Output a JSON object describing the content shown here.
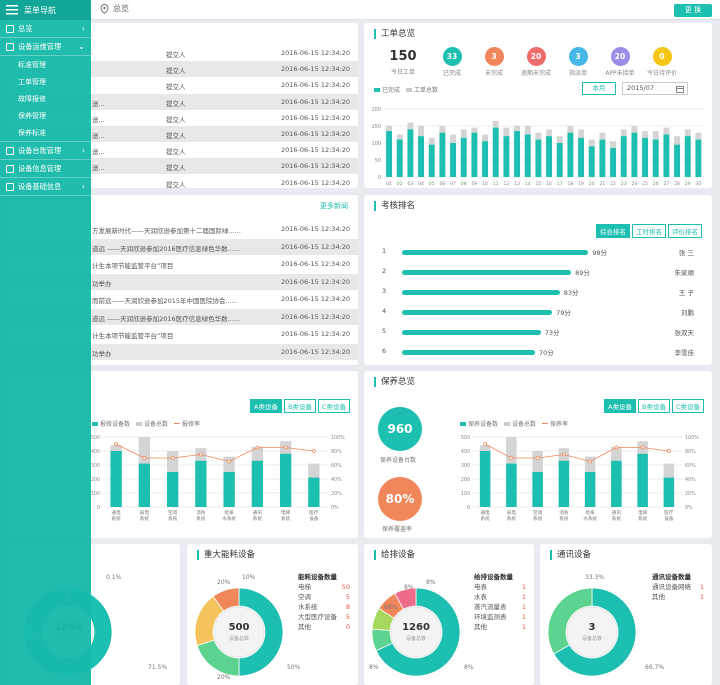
{
  "sidebar": {
    "title": "菜单导航",
    "items": [
      {
        "label": "总览",
        "arrow": "›"
      },
      {
        "label": "设备运维管理",
        "arrow": "⌄"
      },
      {
        "label": "设备台账管理",
        "arrow": "›"
      },
      {
        "label": "设备信息管理",
        "arrow": ""
      },
      {
        "label": "设备基础信息",
        "arrow": "›"
      }
    ],
    "subitems": [
      "标准管理",
      "工单管理",
      "故障报修",
      "保养管理",
      "保养标准"
    ]
  },
  "topbar": {
    "location": "总览",
    "button": "更 换"
  },
  "tasks": {
    "rows": [
      {
        "a": "",
        "b": "提交人",
        "c": "2016-06-15 12:34:20"
      },
      {
        "a": "",
        "b": "提交人",
        "c": "2016-06-15 12:34:20"
      },
      {
        "a": "",
        "b": "提交人",
        "c": "2016-06-15 12:34:20"
      },
      {
        "a": "送...",
        "b": "提交人",
        "c": "2016-06-15 12:34:20"
      },
      {
        "a": "送...",
        "b": "提交人",
        "c": "2016-06-15 12:34:20"
      },
      {
        "a": "送...",
        "b": "提交人",
        "c": "2016-06-15 12:34:20"
      },
      {
        "a": "送...",
        "b": "提交人",
        "c": "2016-06-15 12:34:20"
      },
      {
        "a": "送...",
        "b": "提交人",
        "c": "2016-06-15 12:34:20"
      },
      {
        "a": "",
        "b": "提交人",
        "c": "2016-06-15 12:34:20"
      }
    ]
  },
  "news": {
    "more": "更多新闻",
    "rows": [
      {
        "t": "方发展新时代——天润欣逊参加第十二届国际绿......",
        "d": "2016-06-15 12:34:20"
      },
      {
        "t": "道远 ——天润欣逊参加2016医疗信息绿色华数......",
        "d": "2016-06-15 12:34:20"
      },
      {
        "t": "计生本项节能监管平台”项目",
        "d": "2016-06-15 12:34:20"
      },
      {
        "t": "功举办",
        "d": "2016-06-15 12:34:20"
      },
      {
        "t": "而前远——天润欣逊参加2015年中国医院协会......",
        "d": "2016-06-15 12:34:20"
      },
      {
        "t": "道远 ——天润欣逊参加2016医疗信息绿色华数......",
        "d": "2016-06-15 12:34:20"
      },
      {
        "t": "计生本项节能监管平台”项目",
        "d": "2016-06-15 12:34:20"
      },
      {
        "t": "功举办",
        "d": "2016-06-15 12:34:20"
      }
    ]
  },
  "workorders": {
    "title": "工单总览",
    "total": {
      "value": "150",
      "label": "今日工单"
    },
    "stats": [
      {
        "value": "33",
        "label": "已完成",
        "color": "#1cbfb0"
      },
      {
        "value": "3",
        "label": "未完成",
        "color": "#f0875a"
      },
      {
        "value": "20",
        "label": "逾期未完成",
        "color": "#ee6b6b"
      },
      {
        "value": "3",
        "label": "指派单",
        "color": "#47b6e8"
      },
      {
        "value": "20",
        "label": "APP未接单",
        "color": "#9b8de8"
      },
      {
        "value": "0",
        "label": "今日待评价",
        "color": "#f5c518"
      }
    ],
    "legend": [
      "已完成",
      "工单总数"
    ],
    "month_btn": "本月",
    "month_value": "2015/07"
  },
  "ranking": {
    "title": "考核排名",
    "tabs": [
      "综合排名",
      "工时排名",
      "评价排名"
    ],
    "rows": [
      {
        "rank": "1",
        "score": "98分",
        "value": 98,
        "name": "张 三"
      },
      {
        "rank": "2",
        "score": "89分",
        "value": 89,
        "name": "朱家顺"
      },
      {
        "rank": "3",
        "score": "83分",
        "value": 83,
        "name": "王 子"
      },
      {
        "rank": "4",
        "score": "79分",
        "value": 79,
        "name": "刘鹏"
      },
      {
        "rank": "5",
        "score": "73分",
        "value": 73,
        "name": "张双天"
      },
      {
        "rank": "6",
        "score": "70分",
        "value": 70,
        "name": "李雪佳"
      }
    ]
  },
  "repair": {
    "tabs": [
      "A类设备",
      "B类设备",
      "C类设备"
    ],
    "legend": [
      "报修设备数",
      "设备总数",
      "报修率"
    ]
  },
  "maint": {
    "title": "保养总览",
    "tabs": [
      "A类设备",
      "B类设备",
      "C类设备"
    ],
    "legend": [
      "保养设备数",
      "设备总数",
      "保养率"
    ],
    "gauge1": {
      "value": "960",
      "label": "保养设备台数"
    },
    "gauge2": {
      "value": "80%",
      "label": "保养覆盖率"
    }
  },
  "donuts": [
    {
      "title": "",
      "center": "1263",
      "center_label": "设备总数",
      "pct_a": "0.1%",
      "pct_b": "71.5%"
    },
    {
      "title": "重大能耗设备",
      "center": "500",
      "center_label": "设备总数",
      "pcts": [
        "20%",
        "10%",
        "50%",
        "20%"
      ],
      "list_title": "能耗设备数量",
      "items": [
        {
          "n": "电梯",
          "v": "50"
        },
        {
          "n": "空调",
          "v": "5"
        },
        {
          "n": "水系统",
          "v": "8"
        },
        {
          "n": "大型医疗设备",
          "v": "5"
        },
        {
          "n": "其他",
          "v": "0"
        }
      ]
    },
    {
      "title": "给排设备",
      "center": "1260",
      "center_label": "设备总数",
      "pcts": [
        "8%",
        "8%",
        "8%",
        "8%",
        "68%"
      ],
      "list_title": "给排设备数量",
      "items": [
        {
          "n": "电表",
          "v": "1"
        },
        {
          "n": "水表",
          "v": "1"
        },
        {
          "n": "蒸汽流量表",
          "v": "1"
        },
        {
          "n": "环境监测表",
          "v": "1"
        },
        {
          "n": "其他",
          "v": "1"
        }
      ]
    },
    {
      "title": "通讯设备",
      "center": "3",
      "center_label": "设备总数",
      "pcts": [
        "33.3%",
        "66.7%"
      ],
      "list_title": "通讯设备数量",
      "items": [
        {
          "n": "通讯设备网络",
          "v": "1"
        },
        {
          "n": "其他",
          "v": "1"
        }
      ]
    }
  ],
  "chart_data": [
    {
      "type": "bar",
      "title": "工单总览",
      "series": [
        {
          "name": "已完成",
          "values": [
            135,
            110,
            140,
            120,
            95,
            130,
            100,
            115,
            130,
            105,
            145,
            120,
            135,
            125,
            110,
            120,
            100,
            130,
            115,
            90,
            110,
            85,
            120,
            130,
            115,
            110,
            125,
            95,
            120,
            110
          ]
        },
        {
          "name": "工单总数",
          "values": [
            150,
            125,
            160,
            150,
            115,
            150,
            125,
            140,
            145,
            125,
            165,
            145,
            150,
            150,
            130,
            140,
            120,
            150,
            140,
            110,
            130,
            105,
            140,
            150,
            135,
            135,
            145,
            120,
            140,
            130
          ]
        }
      ],
      "categories": [
        "01",
        "02",
        "03",
        "04",
        "05",
        "06",
        "07",
        "08",
        "09",
        "10",
        "11",
        "12",
        "13",
        "14",
        "15",
        "16",
        "17",
        "18",
        "19",
        "20",
        "21",
        "22",
        "23",
        "24",
        "25",
        "26",
        "27",
        "28",
        "29",
        "30"
      ],
      "ylim": [
        0,
        200
      ]
    },
    {
      "type": "bar",
      "title": "",
      "categories": [
        "通电系统",
        "弱电系统",
        "空调系统",
        "消防系统",
        "给排水系统",
        "通讯系统",
        "电梯系统",
        "医疗设备"
      ],
      "series": [
        {
          "name": "报修设备数",
          "values": [
            400,
            310,
            250,
            330,
            250,
            330,
            380,
            210
          ]
        },
        {
          "name": "设备总数",
          "values": [
            440,
            500,
            400,
            420,
            360,
            430,
            470,
            310
          ]
        },
        {
          "name": "报修率",
          "values": [
            90,
            70,
            70,
            75,
            65,
            85,
            85,
            80
          ]
        }
      ],
      "ylim": [
        0,
        500
      ],
      "y2lim": [
        0,
        100
      ]
    },
    {
      "type": "bar",
      "title": "保养总览",
      "categories": [
        "通电系统",
        "弱电系统",
        "空调系统",
        "消防系统",
        "给排水系统",
        "通讯系统",
        "电梯系统",
        "医疗设备"
      ],
      "series": [
        {
          "name": "保养设备数",
          "values": [
            400,
            310,
            250,
            330,
            250,
            330,
            380,
            210
          ]
        },
        {
          "name": "设备总数",
          "values": [
            440,
            500,
            400,
            420,
            360,
            430,
            470,
            310
          ]
        },
        {
          "name": "保养率",
          "values": [
            90,
            70,
            70,
            75,
            65,
            85,
            85,
            80
          ]
        }
      ],
      "ylim": [
        0,
        500
      ],
      "y2lim": [
        0,
        100
      ]
    }
  ]
}
